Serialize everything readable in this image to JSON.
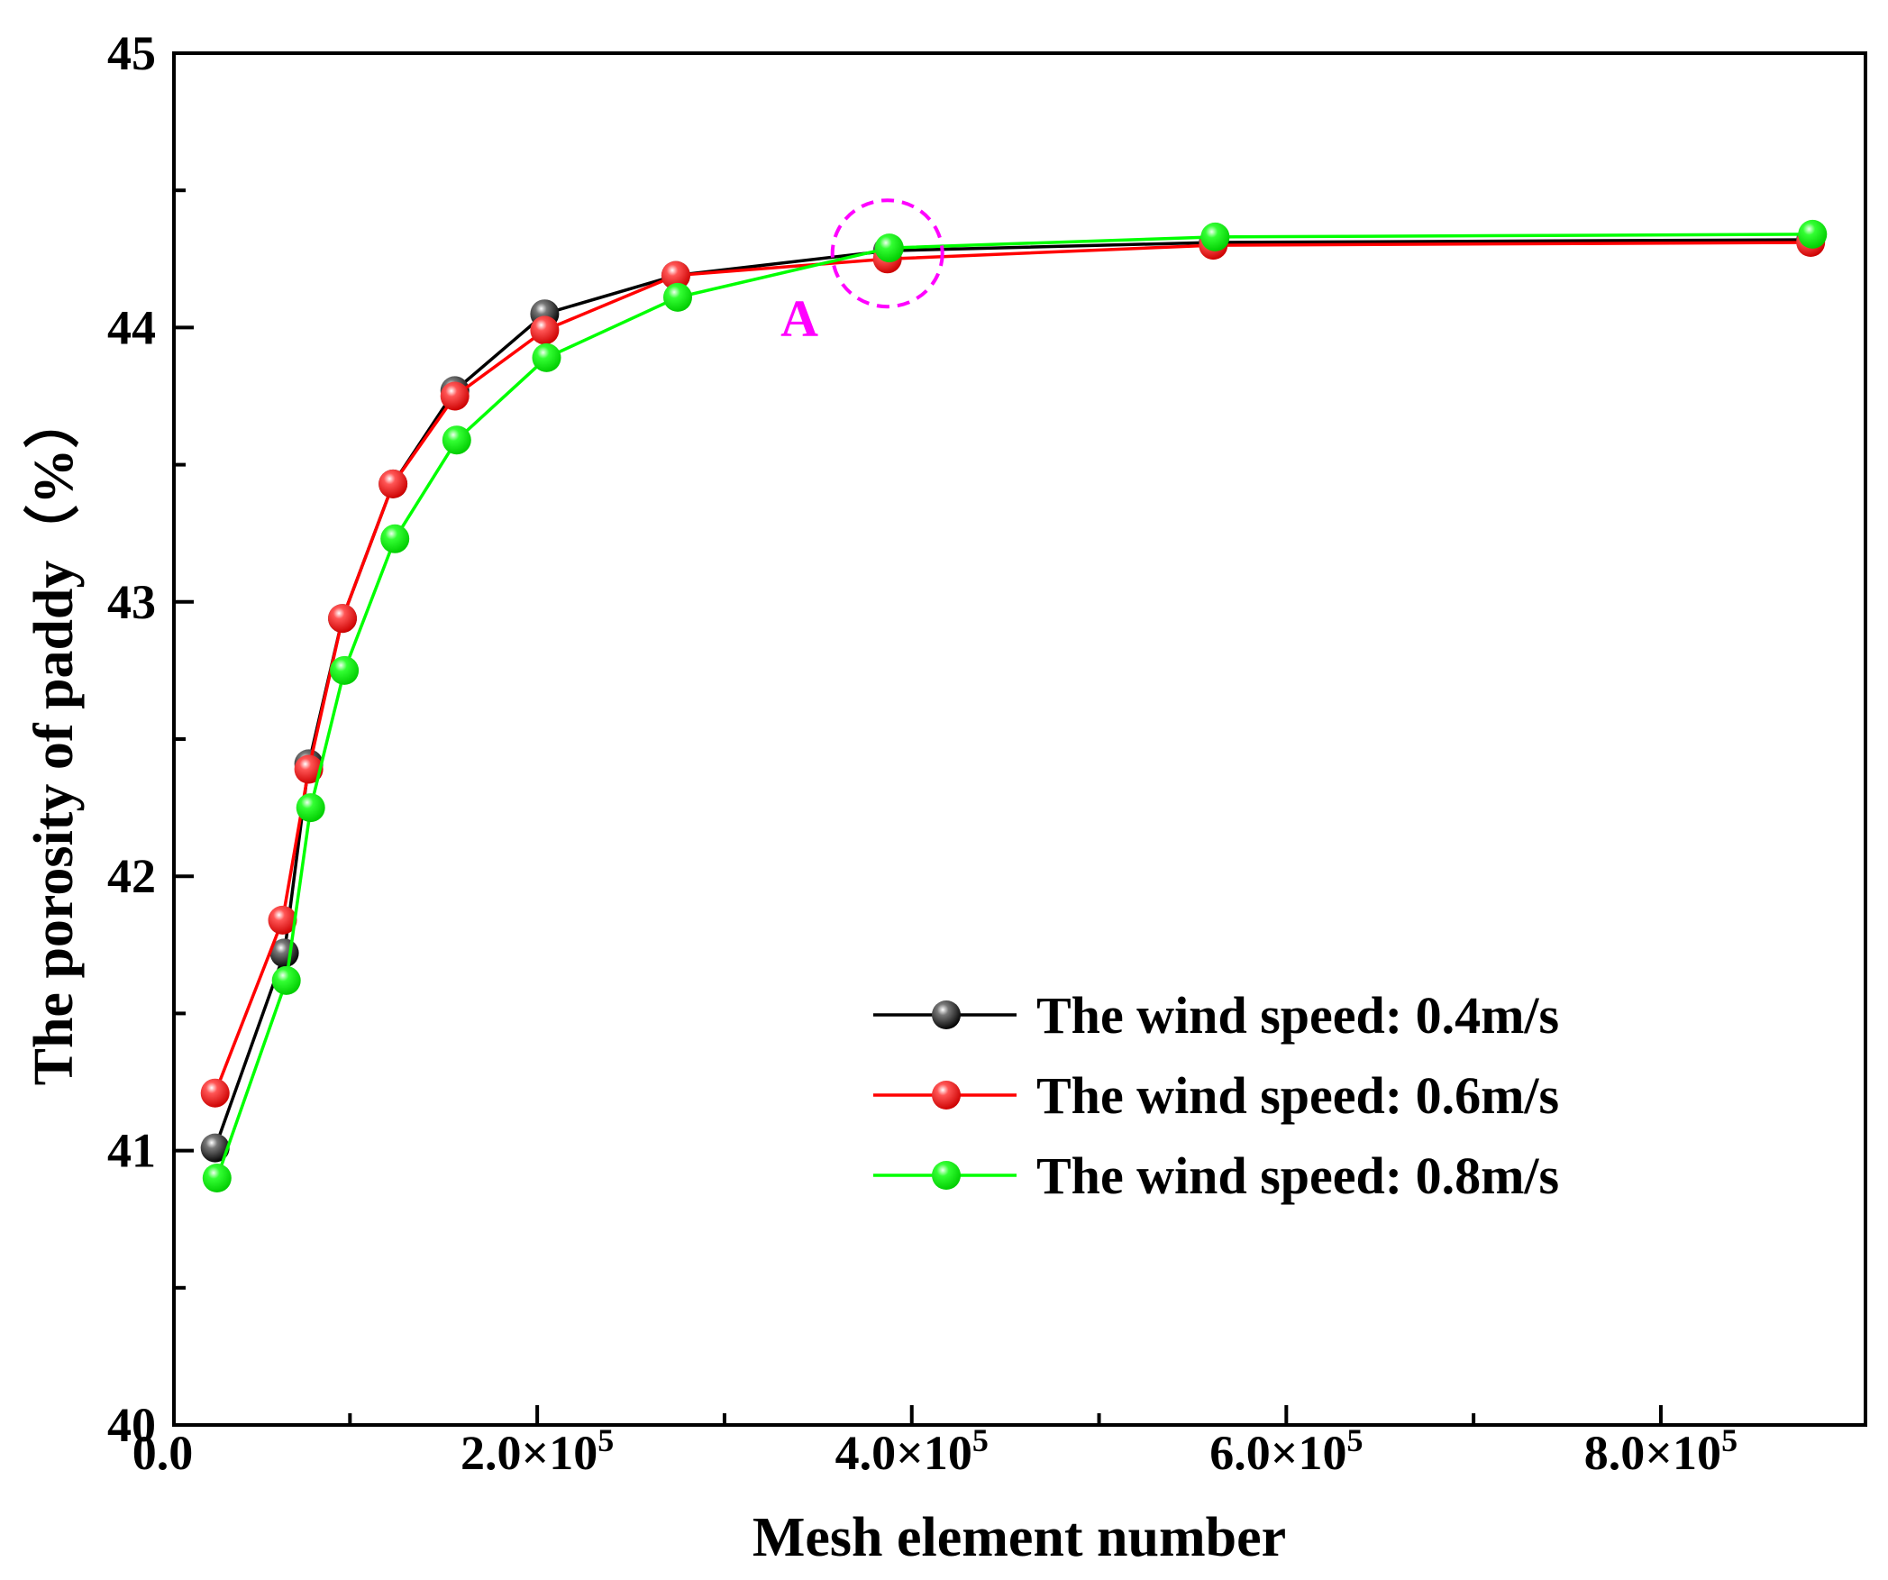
{
  "chart_data": {
    "type": "line",
    "title": "",
    "xlabel": "Mesh element number",
    "ylabel": "The porosity of paddy（%）",
    "xlim": [
      0,
      900000
    ],
    "ylim": [
      40,
      45
    ],
    "x_ticks": [
      {
        "value": 0,
        "label": "0.0"
      },
      {
        "value": 200000,
        "label": "2.0×10",
        "exp": "5"
      },
      {
        "value": 400000,
        "label": "4.0×10",
        "exp": "5"
      },
      {
        "value": 600000,
        "label": "6.0×10",
        "exp": "5"
      },
      {
        "value": 800000,
        "label": "8.0×10",
        "exp": "5"
      }
    ],
    "x_minor_ticks": [
      100000,
      300000,
      500000,
      700000
    ],
    "y_ticks": [
      {
        "value": 40,
        "label": "40"
      },
      {
        "value": 41,
        "label": "41"
      },
      {
        "value": 42,
        "label": "42"
      },
      {
        "value": 43,
        "label": "43"
      },
      {
        "value": 44,
        "label": "44"
      },
      {
        "value": 45,
        "label": "45"
      }
    ],
    "y_minor_ticks": [
      40.5,
      41.5,
      42.5,
      43.5,
      44.5
    ],
    "grid": false,
    "legend_position": "lower-right",
    "series": [
      {
        "name": "The wind speed: 0.4m/s",
        "color": "#000000",
        "x": [
          28000,
          65000,
          78000,
          96000,
          123000,
          156000,
          204000,
          274000,
          387000,
          561000,
          880000
        ],
        "y": [
          41.01,
          41.72,
          42.41,
          42.94,
          43.43,
          43.77,
          44.05,
          44.19,
          44.28,
          44.31,
          44.32
        ]
      },
      {
        "name": "The wind speed: 0.6m/s",
        "color": "#ff0000",
        "x": [
          28000,
          64000,
          78000,
          96000,
          123000,
          156000,
          204000,
          274000,
          387000,
          561000,
          880000
        ],
        "y": [
          41.21,
          41.84,
          42.39,
          42.94,
          43.43,
          43.75,
          43.99,
          44.19,
          44.25,
          44.3,
          44.31
        ]
      },
      {
        "name": "The wind speed: 0.8m/s",
        "color": "#00ff00",
        "x": [
          29000,
          66000,
          79000,
          97000,
          124000,
          157000,
          205000,
          275000,
          388000,
          562000,
          881000
        ],
        "y": [
          40.9,
          41.62,
          42.25,
          42.75,
          43.23,
          43.59,
          43.89,
          44.11,
          44.29,
          44.33,
          44.34
        ]
      }
    ],
    "annotations": [
      {
        "text": "A",
        "color": "#ff00ff",
        "x": 340000,
        "y": 43.97
      }
    ],
    "highlight": {
      "x": 387000,
      "y": 44.27,
      "color": "#ff00ff"
    }
  }
}
